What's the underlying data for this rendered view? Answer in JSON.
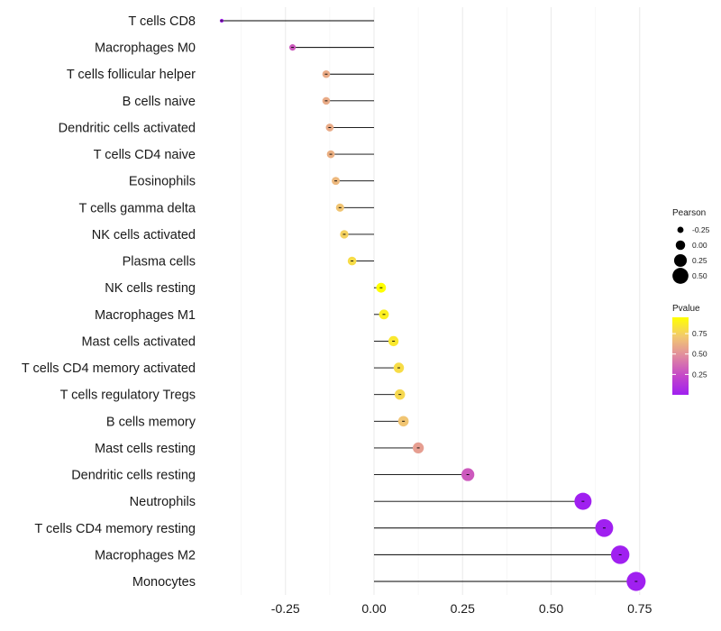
{
  "chart_data": {
    "type": "lollipop",
    "categories": [
      "T cells CD8",
      "Macrophages M0",
      "T cells follicular helper",
      "B cells naive",
      "Dendritic cells activated",
      "T cells CD4 naive",
      "Eosinophils",
      "T cells gamma delta",
      "NK cells activated",
      "Plasma cells",
      "NK cells resting",
      "Macrophages M1",
      "Mast cells activated",
      "T cells CD4 memory activated",
      "T cells regulatory  Tregs ",
      "B cells memory",
      "Mast cells resting",
      "Dendritic cells resting",
      "Neutrophils",
      "T cells CD4 memory resting",
      "Macrophages M2",
      "Monocytes"
    ],
    "values": [
      -0.43,
      -0.23,
      -0.135,
      -0.135,
      -0.125,
      -0.122,
      -0.108,
      -0.096,
      -0.084,
      -0.062,
      0.02,
      0.028,
      0.055,
      0.07,
      0.073,
      0.083,
      0.125,
      0.265,
      0.59,
      0.65,
      0.695,
      0.74
    ],
    "pvalues": [
      0.02,
      0.3,
      0.6,
      0.6,
      0.6,
      0.62,
      0.65,
      0.7,
      0.75,
      0.8,
      0.95,
      0.88,
      0.85,
      0.8,
      0.78,
      0.7,
      0.55,
      0.3,
      0.001,
      0.001,
      0.001,
      0.001
    ],
    "xlim": [
      -0.5,
      0.82
    ],
    "x_ticks": [
      -0.25,
      0.0,
      0.25,
      0.5,
      0.75
    ],
    "x_tick_labels": [
      "-0.25",
      "0.00",
      "0.25",
      "0.50",
      "0.75"
    ],
    "xlabel": "",
    "ylabel": "",
    "grid": true,
    "legend_size": {
      "title": "Pearson",
      "values": [
        -0.25,
        0.0,
        0.25,
        0.5
      ],
      "labels": [
        "-0.25",
        "0.00",
        "0.25",
        "0.50"
      ]
    },
    "legend_color": {
      "title": "Pvalue",
      "ticks": [
        0.25,
        0.5,
        0.75
      ],
      "labels": [
        "0.25",
        "0.50",
        "0.75"
      ],
      "range": [
        0,
        0.95
      ],
      "low_color": "#a020f0",
      "high_color": "#ffff00"
    },
    "stem_color": "#000000",
    "grid_color": "#ebebeb"
  }
}
